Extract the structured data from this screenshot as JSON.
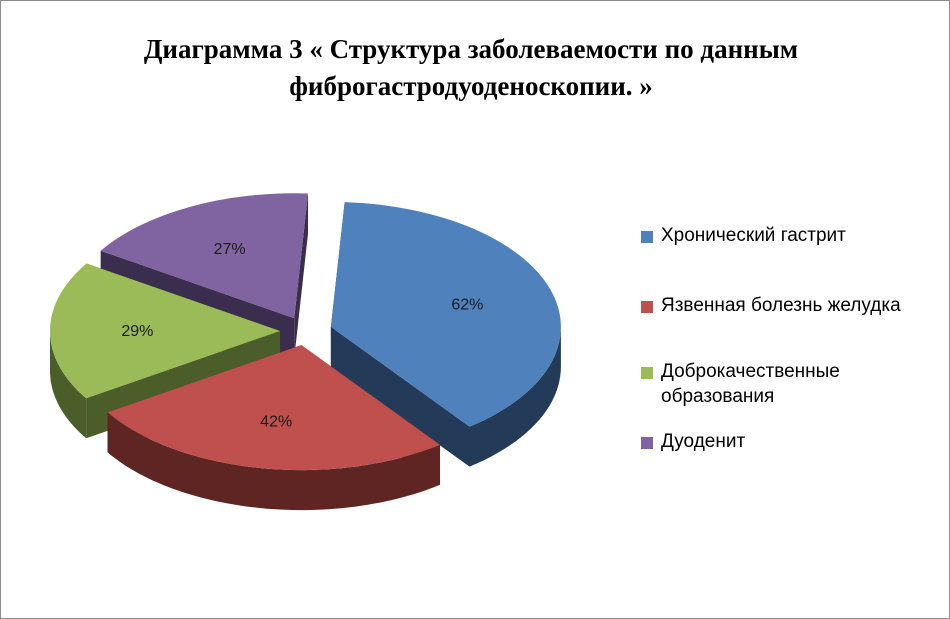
{
  "chart_data": {
    "type": "pie",
    "title": "Диаграмма 3  « Структура заболеваемости по данным фиброгастродуоденоскопии. »",
    "title_lines": [
      "Диаграмма 3  « Структура заболеваемости по данным",
      "фиброгастродуоденоскопии. »"
    ],
    "slices": [
      {
        "label": "Хронический гастрит",
        "value": 62,
        "value_label": "62%",
        "color": "#4f81bd",
        "side_color": "#243a59"
      },
      {
        "label": "Язвенная болезнь желудка",
        "value": 42,
        "value_label": "42%",
        "color": "#c0504d",
        "side_color": "#5e2523"
      },
      {
        "label": "Доброкачественные образования",
        "value": 29,
        "value_label": "29%",
        "color": "#9bbb59",
        "side_color": "#4b5d29"
      },
      {
        "label": "Дуоденит",
        "value": 27,
        "value_label": "27%",
        "color": "#8064a2",
        "side_color": "#3a2d4d"
      }
    ],
    "legend_position": "right",
    "exploded": true,
    "three_d": true
  }
}
